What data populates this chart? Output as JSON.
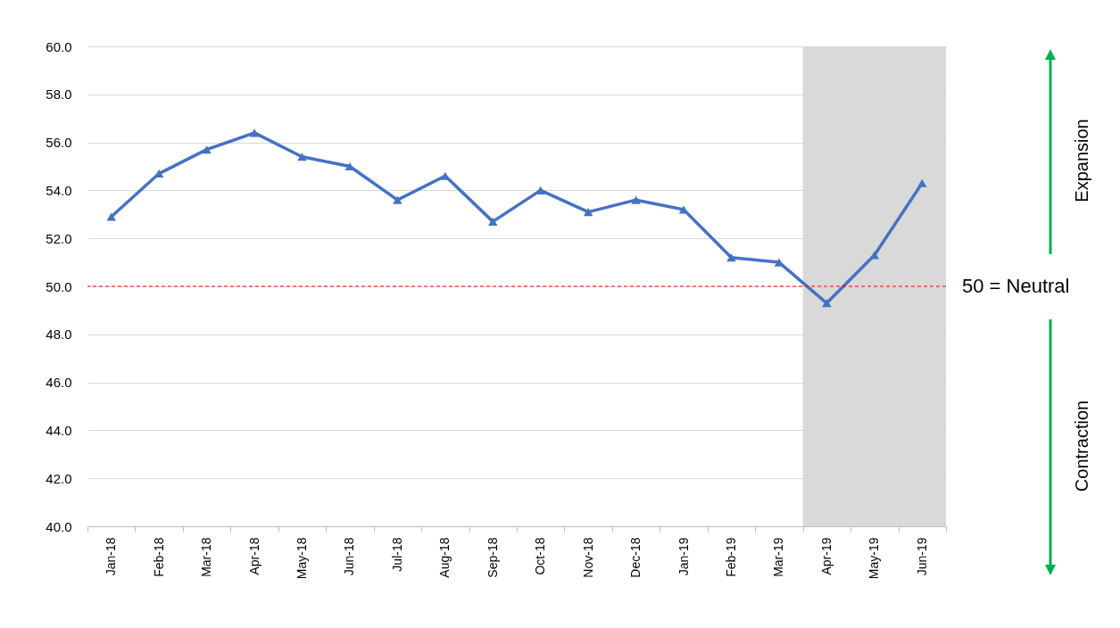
{
  "chart_data": {
    "type": "line",
    "categories": [
      "Jan-18",
      "Feb-18",
      "Mar-18",
      "Apr-18",
      "May-18",
      "Jun-18",
      "Jul-18",
      "Aug-18",
      "Sep-18",
      "Oct-18",
      "Nov-18",
      "Dec-18",
      "Jan-19",
      "Feb-19",
      "Mar-19",
      "Apr-19",
      "May-19",
      "Jun-19"
    ],
    "series": [
      {
        "color": "#4472c4",
        "values": [
          52.9,
          54.7,
          55.7,
          56.4,
          55.4,
          55.0,
          53.6,
          54.6,
          52.7,
          54.0,
          53.1,
          53.6,
          53.2,
          51.2,
          51.0,
          49.3,
          51.3,
          54.3
        ]
      }
    ],
    "ylim": [
      40,
      60
    ],
    "yticks": [
      {
        "value": 40,
        "label": "40.0"
      },
      {
        "value": 42,
        "label": "42.0"
      },
      {
        "value": 44,
        "label": "44.0"
      },
      {
        "value": 46,
        "label": "46.0"
      },
      {
        "value": 48,
        "label": "48.0"
      },
      {
        "value": 50,
        "label": "50.0"
      },
      {
        "value": 52,
        "label": "52.0"
      },
      {
        "value": 54,
        "label": "54.0"
      },
      {
        "value": 56,
        "label": "56.0"
      },
      {
        "value": 58,
        "label": "58.0"
      },
      {
        "value": 60,
        "label": "60.0"
      }
    ],
    "grid": "y",
    "marker": "triangle",
    "ref_lines": [
      {
        "axis": "y",
        "value": 50,
        "label": "50 = Neutral",
        "color": "#ff0000",
        "line_style": "dashed"
      }
    ],
    "bands": [
      {
        "axis": "x",
        "from": "Apr-19",
        "to": "Jun-19",
        "color": "#d9d9d9"
      }
    ],
    "annotations": [
      "Expansion",
      "Contraction"
    ]
  }
}
